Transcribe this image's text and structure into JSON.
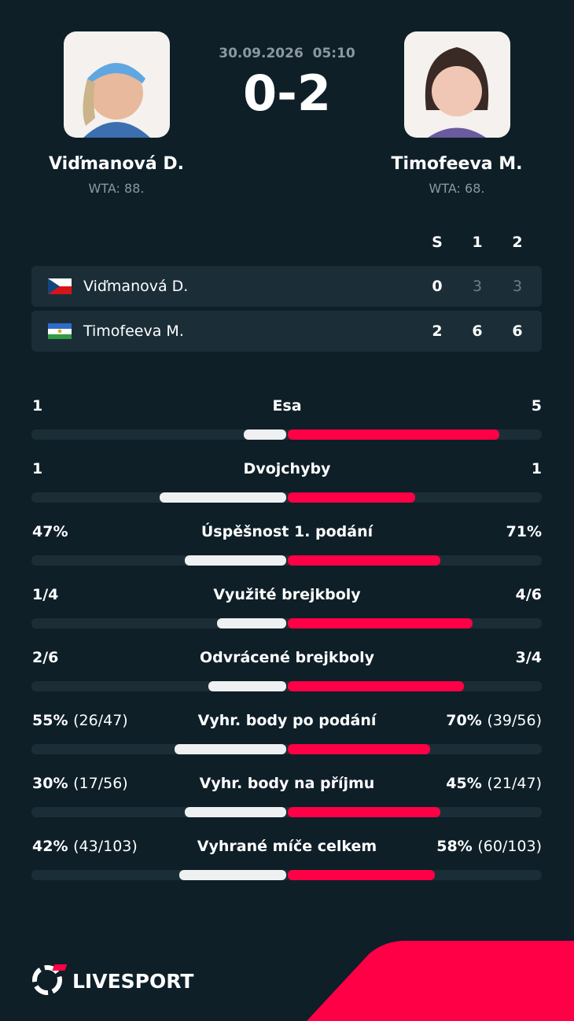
{
  "match": {
    "date": "30.09.2026",
    "time": "05:10",
    "score": "0-2"
  },
  "players": [
    {
      "name": "Viďmanová D.",
      "rank": "WTA: 88."
    },
    {
      "name": "Timofeeva M.",
      "rank": "WTA: 68."
    }
  ],
  "scoreboard": {
    "headers": [
      "S",
      "1",
      "2"
    ],
    "rows": [
      {
        "name": "Viďmanová D.",
        "scores": [
          0,
          3,
          3
        ]
      },
      {
        "name": "Timofeeva M.",
        "scores": [
          2,
          6,
          6
        ]
      }
    ]
  },
  "stats": [
    {
      "label": "Esa",
      "home": {
        "value": 1
      },
      "away": {
        "value": 5
      }
    },
    {
      "label": "Dvojchyby",
      "home": {
        "value": 1
      },
      "away": {
        "value": 1
      }
    },
    {
      "label": "Úspěšnost 1. podání",
      "home": {
        "value": 47,
        "label": "47%"
      },
      "away": {
        "value": 71,
        "label": "71%"
      }
    },
    {
      "label": "Využité brejkboly",
      "home": {
        "value": 25,
        "label": "1/4"
      },
      "away": {
        "value": 66.7,
        "label": "4/6"
      }
    },
    {
      "label": "Odvrácené brejkboly",
      "home": {
        "value": 33.3,
        "label": "2/6"
      },
      "away": {
        "value": 75,
        "label": "3/4"
      }
    },
    {
      "label": "Vyhr. body po podání",
      "home": {
        "value": 55,
        "label": "55%",
        "detail": "(26/47)"
      },
      "away": {
        "value": 70,
        "label": "70%",
        "detail": "(39/56)"
      }
    },
    {
      "label": "Vyhr. body na příjmu",
      "home": {
        "value": 30,
        "label": "30%",
        "detail": "(17/56)"
      },
      "away": {
        "value": 45,
        "label": "45%",
        "detail": "(21/47)"
      }
    },
    {
      "label": "Vyhrané míče celkem",
      "home": {
        "value": 42,
        "label": "42%",
        "detail": "(43/103)"
      },
      "away": {
        "value": 58,
        "label": "58%",
        "detail": "(60/103)"
      }
    }
  ],
  "brand": "LIVESPORT"
}
